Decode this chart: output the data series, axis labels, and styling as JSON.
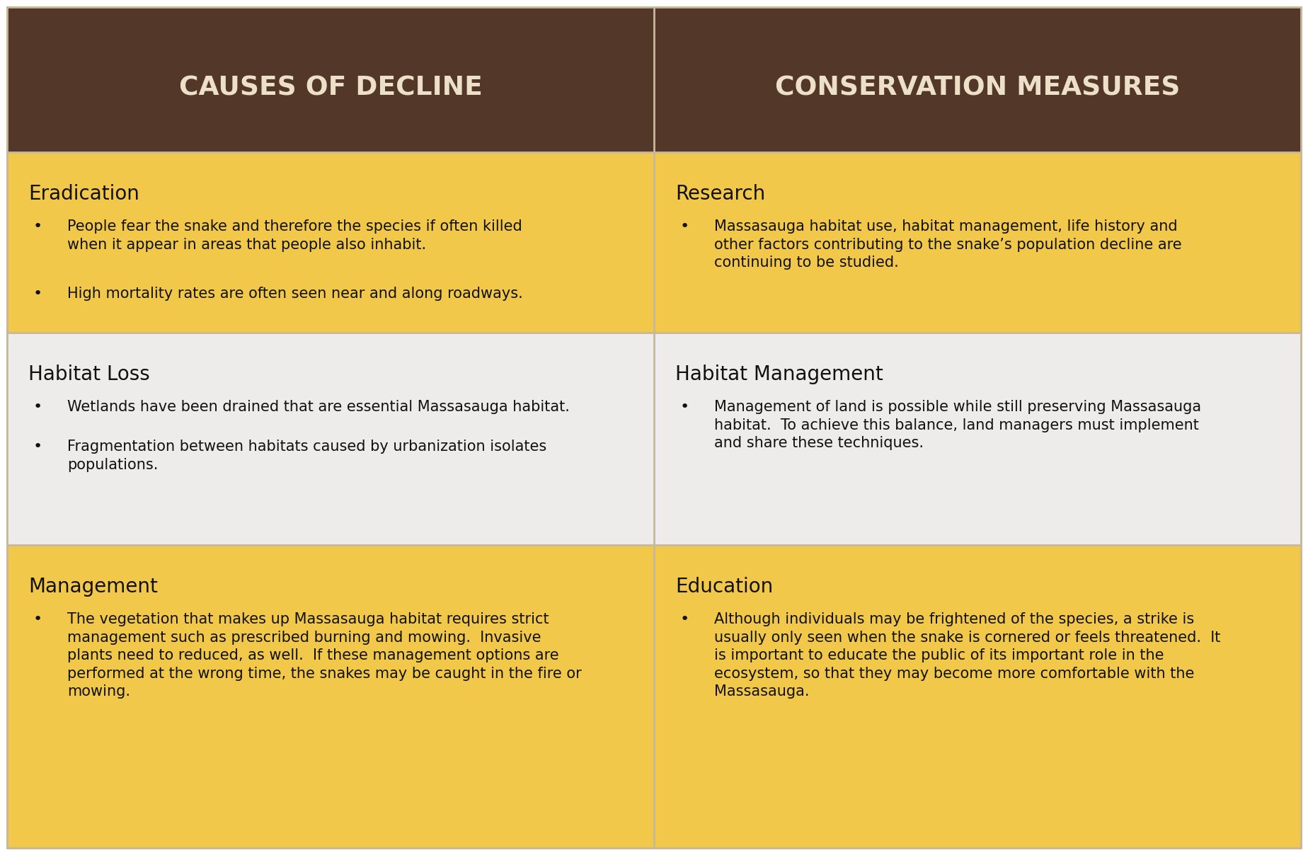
{
  "header_bg": "#533728",
  "header_text_color": "#EDE0C8",
  "yellow_bg": "#F2C84B",
  "white_bg": "#EEECEA",
  "border_color": "#C8B89A",
  "text_color": "#111111",
  "header_left": "CAUSES OF DECLINE",
  "header_right": "CONSERVATION MEASURES",
  "rows": [
    {
      "bg": "yellow",
      "left_title": "Eradication",
      "left_bullets": [
        "People fear the snake and therefore the species if often killed\nwhen it appear in areas that people also inhabit.",
        "High mortality rates are often seen near and along roadways."
      ],
      "right_title": "Research",
      "right_bullets": [
        "Massasauga habitat use, habitat management, life history and\nother factors contributing to the snake’s population decline are\ncontinuing to be studied."
      ]
    },
    {
      "bg": "white",
      "left_title": "Habitat Loss",
      "left_bullets": [
        "Wetlands have been drained that are essential Massasauga habitat.",
        "Fragmentation between habitats caused by urbanization isolates\npopulations."
      ],
      "right_title": "Habitat Management",
      "right_bullets": [
        "Management of land is possible while still preserving Massasauga\nhabitat.  To achieve this balance, land managers must implement\nand share these techniques."
      ]
    },
    {
      "bg": "yellow",
      "left_title": "Management",
      "left_bullets": [
        "The vegetation that makes up Massasauga habitat requires strict\nmanagement such as prescribed burning and mowing.  Invasive\nplants need to reduced, as well.  If these management options are\nperformed at the wrong time, the snakes may be caught in the fire or\nmowing."
      ],
      "right_title": "Education",
      "right_bullets": [
        "Although individuals may be frightened of the species, a strike is\nusually only seen when the snake is cornered or feels threatened.  It\nis important to educate the public of its important role in the\necosystem, so that they may become more comfortable with the\nMassasauga."
      ]
    }
  ],
  "fig_width": 18.48,
  "fig_height": 12.08,
  "dpi": 100,
  "header_title_fontsize": 27,
  "row_title_fontsize": 20,
  "bullet_fontsize": 15,
  "bullet_dot_fontsize": 16
}
